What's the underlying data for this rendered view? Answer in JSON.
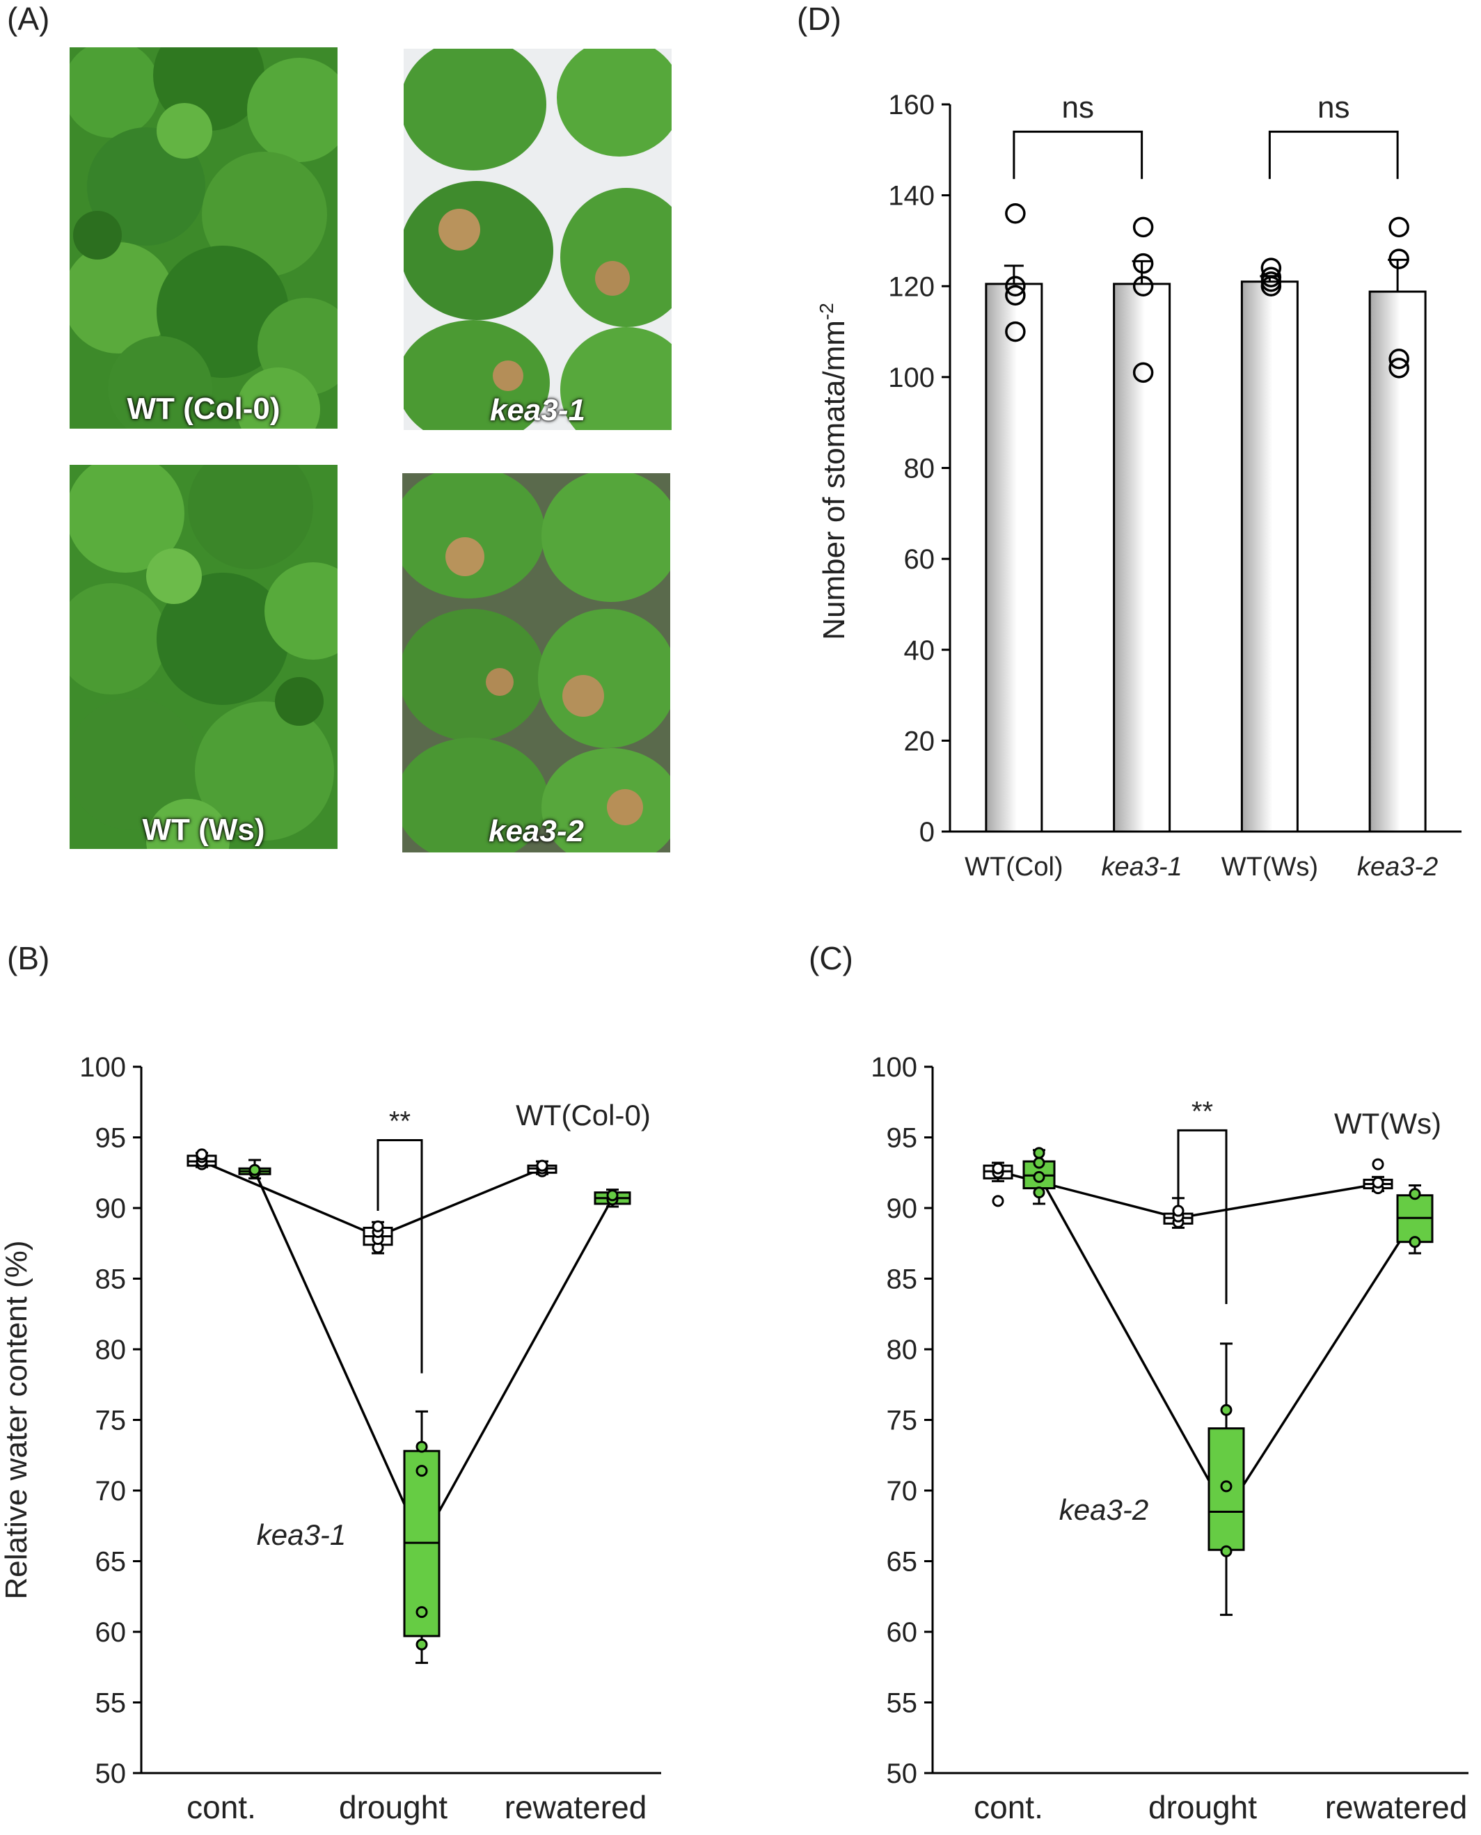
{
  "panel_labels": {
    "a": "(A)",
    "b": "(B)",
    "c": "(C)",
    "d": "(D)"
  },
  "colors": {
    "kea_fill": "#66cc44",
    "wt_fill": "#ffffff",
    "axis": "#000000",
    "plant_green": "#3f8f2a"
  },
  "photos": [
    {
      "label": "WT (Col-0)",
      "italic": false
    },
    {
      "label": "kea3-1",
      "italic": true
    },
    {
      "label": "WT (Ws)",
      "italic": false
    },
    {
      "label": "kea3-2",
      "italic": true
    }
  ],
  "chart_data": [
    {
      "panel": "D",
      "type": "bar",
      "ylabel": "Number of stomata/mm",
      "ylabel_superscript": "-2",
      "ylim": [
        0,
        160
      ],
      "yticks": [
        0,
        20,
        40,
        60,
        80,
        100,
        120,
        140,
        160
      ],
      "categories": [
        {
          "label": "WT(Col)",
          "italic": false
        },
        {
          "label": "kea3-1",
          "italic": true
        },
        {
          "label": "WT(Ws)",
          "italic": false
        },
        {
          "label": "kea3-2",
          "italic": true
        }
      ],
      "values": [
        120.5,
        120.5,
        121,
        118.8
      ],
      "error": [
        4,
        5,
        1.2,
        7
      ],
      "points": [
        [
          136,
          120,
          118,
          110
        ],
        [
          133,
          125,
          120,
          101
        ],
        [
          124,
          122,
          121,
          120
        ],
        [
          133,
          126,
          104,
          102
        ]
      ],
      "brackets": [
        {
          "from": 0,
          "to": 1,
          "label": "ns"
        },
        {
          "from": 2,
          "to": 3,
          "label": "ns"
        }
      ],
      "grid": false
    },
    {
      "panel": "B",
      "type": "box",
      "ylabel": "Relative water content (%)",
      "ylim": [
        50,
        100
      ],
      "yticks": [
        50,
        55,
        60,
        65,
        70,
        75,
        80,
        85,
        90,
        95,
        100
      ],
      "categories": [
        "cont.",
        "drought",
        "rewatered"
      ],
      "series": [
        {
          "name": "WT(Col-0)",
          "boxes": [
            {
              "min": 92.9,
              "q1": 93.0,
              "median": 93.3,
              "q3": 93.7,
              "max": 93.9,
              "points": [
                93.1,
                93.3,
                93.6,
                93.8
              ]
            },
            {
              "min": 86.8,
              "q1": 87.4,
              "median": 88.0,
              "q3": 88.6,
              "max": 89.0,
              "points": [
                87.2,
                87.8,
                88.3,
                88.7
              ]
            },
            {
              "min": 92.4,
              "q1": 92.5,
              "median": 92.8,
              "q3": 93.0,
              "max": 93.3,
              "points": [
                92.6,
                92.8,
                93.0
              ]
            }
          ]
        },
        {
          "name": "kea3-1",
          "boxes": [
            {
              "min": 92.1,
              "q1": 92.4,
              "median": 92.6,
              "q3": 92.8,
              "max": 93.4,
              "points": [
                92.5,
                92.7
              ]
            },
            {
              "min": 57.8,
              "q1": 59.7,
              "median": 66.3,
              "q3": 72.8,
              "max": 75.6,
              "points": [
                59.1,
                61.4,
                71.4,
                73.1
              ]
            },
            {
              "min": 90.1,
              "q1": 90.3,
              "median": 90.7,
              "q3": 91.1,
              "max": 91.3,
              "points": [
                90.6,
                90.9
              ]
            }
          ]
        }
      ],
      "significance": {
        "label": "**",
        "at": "drought"
      }
    },
    {
      "panel": "C",
      "type": "box",
      "ylabel": "",
      "ylim": [
        50,
        100
      ],
      "yticks": [
        50,
        55,
        60,
        65,
        70,
        75,
        80,
        85,
        90,
        95,
        100
      ],
      "categories": [
        "cont.",
        "drought",
        "rewatered"
      ],
      "series": [
        {
          "name": "WT(Ws)",
          "boxes": [
            {
              "min": 91.9,
              "q1": 92.1,
              "median": 92.6,
              "q3": 93.0,
              "max": 93.2,
              "points": [
                90.5,
                92.5,
                92.8
              ]
            },
            {
              "min": 88.6,
              "q1": 88.9,
              "median": 89.3,
              "q3": 89.6,
              "max": 90.7,
              "points": [
                89.0,
                89.4,
                89.8
              ]
            },
            {
              "min": 91.2,
              "q1": 91.4,
              "median": 91.7,
              "q3": 92.0,
              "max": 92.2,
              "points": [
                91.4,
                91.8,
                93.1
              ]
            }
          ]
        },
        {
          "name": "kea3-2",
          "boxes": [
            {
              "min": 90.3,
              "q1": 91.4,
              "median": 92.3,
              "q3": 93.3,
              "max": 94.1,
              "points": [
                91.1,
                92.2,
                93.2,
                93.9
              ]
            },
            {
              "min": 61.2,
              "q1": 65.8,
              "median": 68.5,
              "q3": 74.4,
              "max": 80.4,
              "points": [
                65.7,
                70.3,
                75.7
              ]
            },
            {
              "min": 86.8,
              "q1": 87.6,
              "median": 89.3,
              "q3": 90.9,
              "max": 91.6,
              "points": [
                87.6,
                91.0
              ]
            }
          ]
        }
      ],
      "significance": {
        "label": "**",
        "at": "drought"
      }
    }
  ]
}
